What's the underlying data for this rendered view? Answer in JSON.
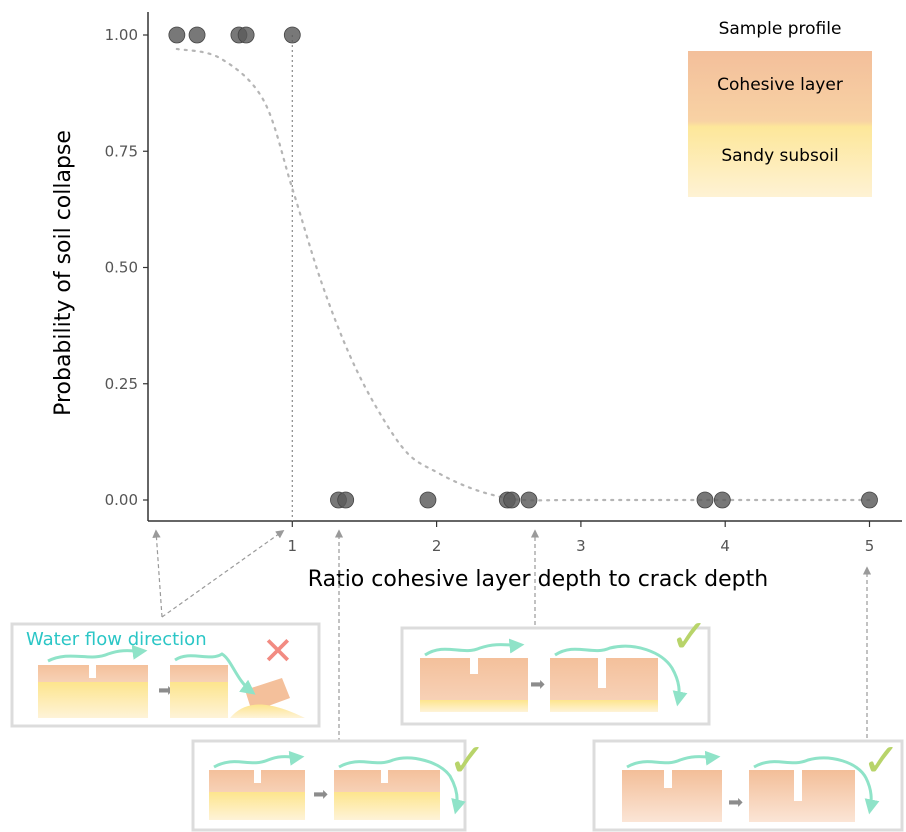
{
  "chart_data": {
    "type": "scatter",
    "xlabel": "Ratio cohesive layer depth to crack depth",
    "ylabel": "Probability of soil collapse",
    "x_ticks": [
      1,
      2,
      3,
      4,
      5
    ],
    "y_ticks": [
      "0.00",
      "0.25",
      "0.50",
      "0.75",
      "1.00"
    ],
    "xlim": [
      0,
      5.2
    ],
    "ylim": [
      0,
      1
    ],
    "grid": false,
    "points": [
      {
        "x": 0.2,
        "y": 1
      },
      {
        "x": 0.34,
        "y": 1
      },
      {
        "x": 0.63,
        "y": 1
      },
      {
        "x": 0.68,
        "y": 1
      },
      {
        "x": 1.0,
        "y": 1
      },
      {
        "x": 1.32,
        "y": 0
      },
      {
        "x": 1.37,
        "y": 0
      },
      {
        "x": 1.94,
        "y": 0
      },
      {
        "x": 2.49,
        "y": 0
      },
      {
        "x": 2.52,
        "y": 0
      },
      {
        "x": 2.64,
        "y": 0
      },
      {
        "x": 3.86,
        "y": 0
      },
      {
        "x": 3.98,
        "y": 0
      },
      {
        "x": 5.0,
        "y": 0
      }
    ],
    "fit_curve": {
      "style": "dotted",
      "model": "logistic",
      "x": [
        0.2,
        0.5,
        0.8,
        1.0,
        1.2,
        1.4,
        1.6,
        1.8,
        2.0,
        2.2,
        2.4,
        2.6,
        3.0,
        4.0,
        5.0
      ],
      "y": [
        0.97,
        0.95,
        0.86,
        0.67,
        0.47,
        0.31,
        0.19,
        0.1,
        0.06,
        0.03,
        0.01,
        0.0,
        0.0,
        0.0,
        0.0
      ]
    },
    "reference_line": {
      "x": 1
    }
  },
  "legend": {
    "title": "Sample profile",
    "items": [
      {
        "label": "Cohesive layer",
        "color": "#f4c3a0"
      },
      {
        "label": "Sandy subsoil",
        "color": "#fde99a"
      }
    ]
  },
  "annotations": {
    "water_flow_label": "Water flow direction",
    "fail_mark": "✕",
    "ok_mark": "✓"
  },
  "colors": {
    "point": "#5a5a5a",
    "flow": "#8fe3c8",
    "fail": "#f28b82",
    "ok": "#b8d46a",
    "panel_border": "#dddddd",
    "water_label": "#2bc6c6"
  }
}
